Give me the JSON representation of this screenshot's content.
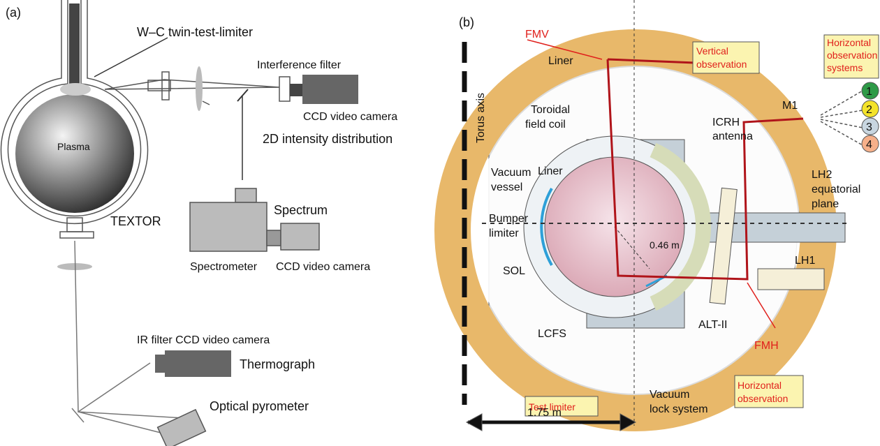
{
  "panel_a": {
    "label": "(a)",
    "limiter": "W–C twin-test-limiter",
    "filter": "Interference filter",
    "camera_top": "CCD video camera",
    "intensity": "2D intensity distribution",
    "plasma": "Plasma",
    "machine": "TEXTOR",
    "spectrum": "Spectrum",
    "spectrometer": "Spectrometer",
    "camera_mid": "CCD video camera",
    "ir_camera": "IR filter CCD video camera",
    "thermograph": "Thermograph",
    "pyrometer": "Optical pyrometer"
  },
  "panel_b": {
    "label": "(b)",
    "fmv": "FMV",
    "liner_top": "Liner",
    "vertical_observation": [
      "Vertical",
      "observation"
    ],
    "horizontal_systems": [
      "Horizontal",
      "observation",
      "systems"
    ],
    "system_numbers": [
      "1",
      "2",
      "3",
      "4"
    ],
    "torus_axis": "Torus axis",
    "toroidal_coil": [
      "Toroidal",
      "field coil"
    ],
    "icrh": [
      "ICRH",
      "antenna"
    ],
    "m1": "M1",
    "liner": "Liner",
    "vacuum_vessel": [
      "Vacuum",
      "vessel"
    ],
    "lh2": [
      "LH2",
      "equatorial",
      "plane"
    ],
    "bumper": [
      "Bumper",
      "limiter"
    ],
    "radius": "0.46 m",
    "sol": "SOL",
    "lh1": "LH1",
    "lcfs": "LCFS",
    "alt": "ALT-II",
    "fmh": "FMH",
    "horizontal_observation": [
      "Horizontal",
      "observation"
    ],
    "test_limiter": "Test limiter",
    "vacuum_lock": [
      "Vacuum",
      "lock system"
    ],
    "scale": "1.75 m"
  }
}
